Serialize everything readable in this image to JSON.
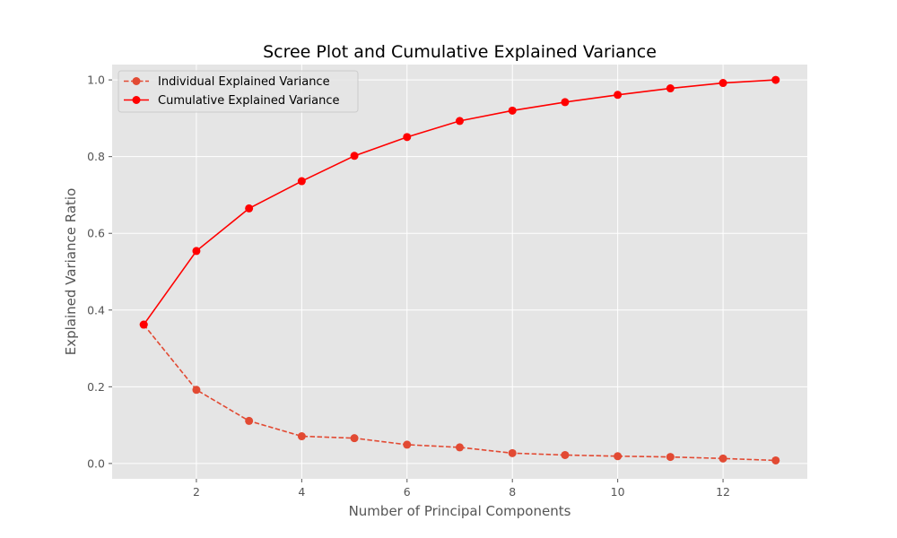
{
  "chart_data": {
    "type": "line",
    "title": "Scree Plot and Cumulative Explained Variance",
    "xlabel": "Number of Principal Components",
    "ylabel": "Explained Variance Ratio",
    "xlim": [
      0.4,
      13.6
    ],
    "ylim": [
      -0.04,
      1.04
    ],
    "xticks": [
      2,
      4,
      6,
      8,
      10,
      12
    ],
    "yticks": [
      0.0,
      0.2,
      0.4,
      0.6,
      0.8,
      1.0
    ],
    "grid": true,
    "legend_position": "top-left",
    "x": [
      1,
      2,
      3,
      4,
      5,
      6,
      7,
      8,
      9,
      10,
      11,
      12,
      13
    ],
    "series": [
      {
        "name": "Individual Explained Variance",
        "color": "#E24A33",
        "line_style": "dashed",
        "marker": "circle",
        "values": [
          0.362,
          0.192,
          0.111,
          0.071,
          0.066,
          0.049,
          0.042,
          0.027,
          0.022,
          0.019,
          0.017,
          0.013,
          0.008
        ]
      },
      {
        "name": "Cumulative Explained Variance",
        "color": "#FF0000",
        "line_style": "solid",
        "marker": "circle",
        "values": [
          0.362,
          0.554,
          0.665,
          0.736,
          0.802,
          0.851,
          0.893,
          0.92,
          0.942,
          0.961,
          0.978,
          0.992,
          1.0
        ]
      }
    ]
  }
}
